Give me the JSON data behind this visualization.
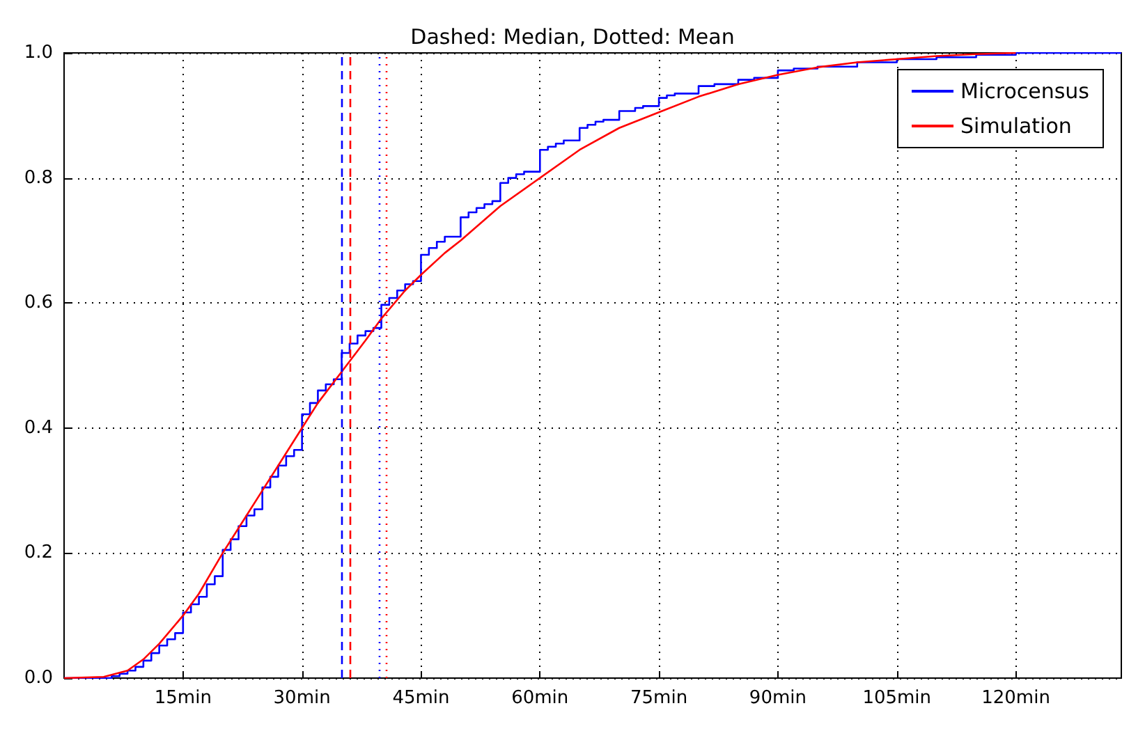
{
  "chart_data": {
    "type": "line",
    "title": "Dashed: Median, Dotted: Mean",
    "xlim": [
      0,
      133.3
    ],
    "ylim": [
      0,
      1
    ],
    "xticks": [
      {
        "value": 15,
        "label": "15min"
      },
      {
        "value": 30,
        "label": "30min"
      },
      {
        "value": 45,
        "label": "45min"
      },
      {
        "value": 60,
        "label": "60min"
      },
      {
        "value": 75,
        "label": "75min"
      },
      {
        "value": 90,
        "label": "90min"
      },
      {
        "value": 105,
        "label": "105min"
      },
      {
        "value": 120,
        "label": "120min"
      }
    ],
    "yticks": [
      {
        "value": 0,
        "label": "0.0"
      },
      {
        "value": 0.2,
        "label": "0.2"
      },
      {
        "value": 0.4,
        "label": "0.4"
      },
      {
        "value": 0.6,
        "label": "0.6"
      },
      {
        "value": 0.8,
        "label": "0.8"
      },
      {
        "value": 1,
        "label": "1.0"
      }
    ],
    "grid": true,
    "legend": "top right",
    "marker": "none",
    "series": [
      {
        "name": "Microcensus",
        "type": "step",
        "color": "#0000ff",
        "x": [
          0,
          6,
          7,
          8,
          9,
          10,
          11,
          12,
          13,
          14,
          15,
          16,
          17,
          18,
          19,
          20,
          21,
          22,
          23,
          24,
          25,
          26,
          27,
          28,
          29,
          30,
          31,
          32,
          33,
          34,
          35,
          36,
          37,
          38,
          39,
          40,
          41,
          42,
          43,
          44,
          45,
          46,
          47,
          48,
          50,
          51,
          52,
          53,
          54,
          55,
          56,
          57,
          58,
          60,
          61,
          62,
          63,
          65,
          66,
          67,
          68,
          70,
          72,
          73,
          75,
          76,
          77,
          80,
          82,
          85,
          87,
          90,
          92,
          95,
          100,
          105,
          110,
          115,
          120,
          133.3
        ],
        "values": [
          0,
          0.003,
          0.007,
          0.012,
          0.018,
          0.028,
          0.04,
          0.052,
          0.062,
          0.072,
          0.105,
          0.118,
          0.13,
          0.15,
          0.163,
          0.205,
          0.222,
          0.243,
          0.26,
          0.27,
          0.305,
          0.322,
          0.34,
          0.355,
          0.365,
          0.422,
          0.44,
          0.46,
          0.47,
          0.478,
          0.52,
          0.535,
          0.548,
          0.555,
          0.56,
          0.597,
          0.608,
          0.62,
          0.63,
          0.635,
          0.677,
          0.688,
          0.698,
          0.706,
          0.737,
          0.745,
          0.752,
          0.758,
          0.763,
          0.792,
          0.8,
          0.806,
          0.81,
          0.845,
          0.85,
          0.855,
          0.86,
          0.88,
          0.885,
          0.89,
          0.893,
          0.907,
          0.912,
          0.915,
          0.928,
          0.932,
          0.935,
          0.947,
          0.95,
          0.957,
          0.96,
          0.972,
          0.975,
          0.978,
          0.985,
          0.99,
          0.993,
          0.997,
          1,
          1
        ]
      },
      {
        "name": "Simulation",
        "type": "line",
        "color": "#ff0000",
        "x": [
          0,
          5,
          8,
          10,
          12,
          15,
          17,
          20,
          22,
          25,
          28,
          30,
          32,
          35,
          38,
          40,
          43,
          45,
          48,
          50,
          55,
          60,
          65,
          70,
          75,
          80,
          85,
          90,
          95,
          100,
          105,
          110,
          115,
          120
        ],
        "values": [
          0,
          0.002,
          0.012,
          0.03,
          0.055,
          0.1,
          0.135,
          0.2,
          0.24,
          0.3,
          0.36,
          0.4,
          0.44,
          0.49,
          0.54,
          0.575,
          0.62,
          0.645,
          0.68,
          0.7,
          0.755,
          0.8,
          0.845,
          0.88,
          0.905,
          0.93,
          0.95,
          0.965,
          0.977,
          0.985,
          0.99,
          0.995,
          0.998,
          1
        ]
      }
    ],
    "ref_lines": [
      {
        "axis": "x",
        "value": 35,
        "color": "#0000ff",
        "line_style": "dashed"
      },
      {
        "axis": "x",
        "value": 36,
        "color": "#ff0000",
        "line_style": "dashed"
      },
      {
        "axis": "x",
        "value": 39.7,
        "color": "#0000ff",
        "line_style": "dotted"
      },
      {
        "axis": "x",
        "value": 40.7,
        "color": "#ff0000",
        "line_style": "dotted"
      }
    ]
  }
}
